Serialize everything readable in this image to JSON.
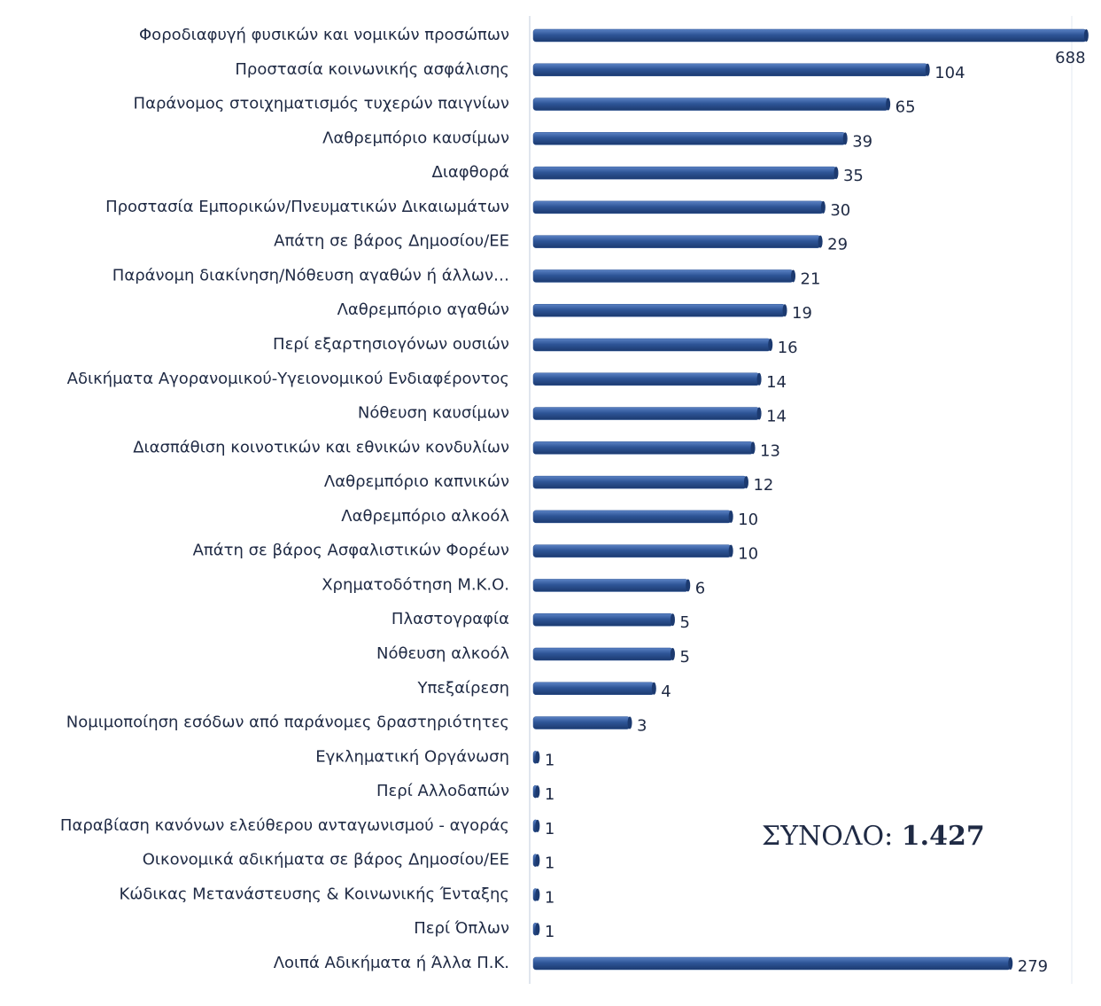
{
  "chart_data": {
    "type": "bar",
    "orientation": "horizontal",
    "log_scale": true,
    "categories": [
      "Φοροδιαφυγή φυσικών και νομικών προσώπων",
      "Προστασία κοινωνικής ασφάλισης",
      "Παράνομος στοιχηματισμός τυχερών παιγνίων",
      "Λαθρεμπόριο καυσίμων",
      "Διαφθορά",
      "Προστασία Εμπορικών/Πνευματικών Δικαιωμάτων",
      "Απάτη σε βάρος Δημοσίου/ΕΕ",
      "Παράνομη διακίνηση/Νόθευση αγαθών ή άλλων…",
      "Λαθρεμπόριο αγαθών",
      "Περί εξαρτησιογόνων ουσιών",
      "Αδικήματα Αγορανομικού-Υγειονομικού Ενδιαφέροντος",
      "Νόθευση καυσίμων",
      "Διασπάθιση κοινοτικών και εθνικών κονδυλίων",
      "Λαθρεμπόριο καπνικών",
      "Λαθρεμπόριο αλκοόλ",
      "Απάτη σε βάρος Ασφαλιστικών Φορέων",
      "Χρηματοδότηση Μ.Κ.Ο.",
      "Πλαστογραφία",
      "Νόθευση αλκοόλ",
      "Υπεξαίρεση",
      "Νομιμοποίηση εσόδων από παράνομες δραστηριότητες",
      "Εγκληματική Οργάνωση",
      "Περί Αλλοδαπών",
      "Παραβίαση κανόνων ελεύθερου ανταγωνισμού - αγοράς",
      "Οικονομικά αδικήματα σε βάρος Δημοσίου/ΕΕ",
      "Κώδικας Μετανάστευσης & Κοινωνικής Ένταξης",
      "Περί Όπλων",
      "Λοιπά Αδικήματα ή Άλλα Π.Κ."
    ],
    "values": [
      688,
      104,
      65,
      39,
      35,
      30,
      29,
      21,
      19,
      16,
      14,
      14,
      13,
      12,
      10,
      10,
      6,
      5,
      5,
      4,
      3,
      1,
      1,
      1,
      1,
      1,
      1,
      279
    ],
    "color": "#2e5597",
    "xlim": [
      0.95,
      700
    ],
    "annotation": {
      "text": "ΣΥΝΟΛΟ:",
      "value": 1427,
      "value_label": "1.427"
    }
  }
}
